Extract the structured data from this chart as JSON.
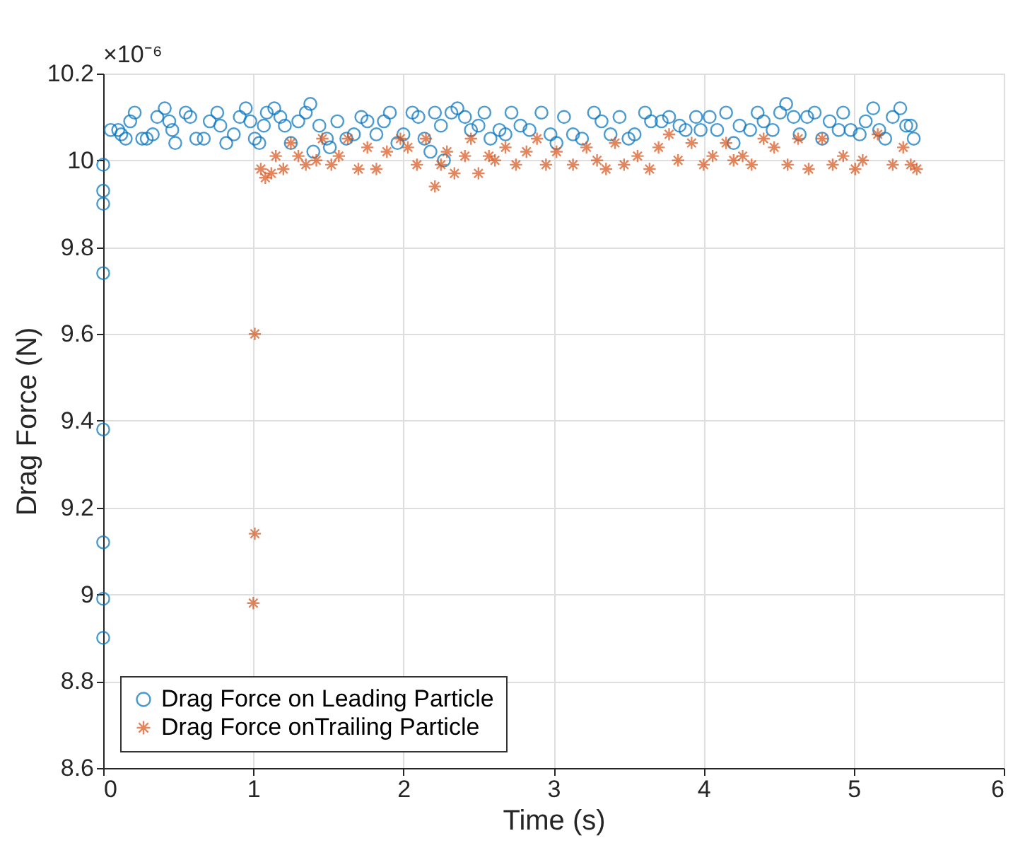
{
  "chart_data": {
    "type": "scatter",
    "xlabel": "Time (s)",
    "ylabel": "Drag Force (N)",
    "annotations": [
      "×10⁻⁶"
    ],
    "xlim": [
      0,
      6
    ],
    "xticks": [
      0,
      1,
      2,
      3,
      4,
      5,
      6
    ],
    "ylim": [
      8.6,
      10.2
    ],
    "yticks": [
      8.6,
      8.8,
      9,
      9.2,
      9.4,
      9.6,
      9.8,
      10,
      10.2
    ],
    "grid": true,
    "legend": "bottom left",
    "series": [
      {
        "name": "Drag Force on Leading Particle",
        "color": "#0072bd",
        "marker": "circle",
        "x": [
          0,
          0,
          0,
          0,
          0,
          0,
          0,
          0,
          0.05,
          0.1,
          0.12,
          0.15,
          0.18,
          0.21,
          0.26,
          0.29,
          0.33,
          0.36,
          0.41,
          0.44,
          0.46,
          0.48,
          0.55,
          0.58,
          0.62,
          0.67,
          0.71,
          0.76,
          0.78,
          0.82,
          0.87,
          0.91,
          0.95,
          0.98,
          1.01,
          1.04,
          1.07,
          1.09,
          1.14,
          1.18,
          1.21,
          1.25,
          1.3,
          1.35,
          1.38,
          1.4,
          1.44,
          1.49,
          1.51,
          1.56,
          1.62,
          1.67,
          1.72,
          1.76,
          1.82,
          1.87,
          1.91,
          1.96,
          2.0,
          2.06,
          2.1,
          2.14,
          2.18,
          2.21,
          2.25,
          2.27,
          2.32,
          2.36,
          2.41,
          2.45,
          2.5,
          2.54,
          2.58,
          2.64,
          2.68,
          2.72,
          2.78,
          2.84,
          2.92,
          2.98,
          3.02,
          3.07,
          3.13,
          3.19,
          3.27,
          3.32,
          3.38,
          3.44,
          3.5,
          3.54,
          3.61,
          3.65,
          3.72,
          3.77,
          3.84,
          3.88,
          3.95,
          3.98,
          4.04,
          4.09,
          4.15,
          4.2,
          4.24,
          4.31,
          4.36,
          4.4,
          4.46,
          4.51,
          4.55,
          4.6,
          4.64,
          4.69,
          4.74,
          4.79,
          4.84,
          4.9,
          4.93,
          4.98,
          5.04,
          5.08,
          5.13,
          5.17,
          5.21,
          5.26,
          5.31,
          5.35,
          5.38,
          5.4
        ],
        "values": [
          9.99,
          9.93,
          9.9,
          9.74,
          9.38,
          9.12,
          8.99,
          8.9,
          10.07,
          10.07,
          10.06,
          10.05,
          10.09,
          10.11,
          10.05,
          10.05,
          10.06,
          10.1,
          10.12,
          10.09,
          10.07,
          10.04,
          10.11,
          10.1,
          10.05,
          10.05,
          10.09,
          10.11,
          10.08,
          10.04,
          10.06,
          10.1,
          10.12,
          10.09,
          10.05,
          10.04,
          10.08,
          10.11,
          10.12,
          10.1,
          10.08,
          10.04,
          10.09,
          10.11,
          10.13,
          10.02,
          10.08,
          10.05,
          10.03,
          10.09,
          10.05,
          10.06,
          10.1,
          10.09,
          10.06,
          10.09,
          10.11,
          10.04,
          10.06,
          10.11,
          10.1,
          10.05,
          10.02,
          10.11,
          10.08,
          10.0,
          10.11,
          10.12,
          10.1,
          10.07,
          10.08,
          10.11,
          10.05,
          10.07,
          10.06,
          10.11,
          10.08,
          10.07,
          10.11,
          10.06,
          10.04,
          10.1,
          10.06,
          10.05,
          10.11,
          10.09,
          10.06,
          10.1,
          10.05,
          10.06,
          10.11,
          10.09,
          10.09,
          10.1,
          10.08,
          10.07,
          10.1,
          10.07,
          10.1,
          10.07,
          10.11,
          10.04,
          10.08,
          10.07,
          10.11,
          10.09,
          10.07,
          10.11,
          10.13,
          10.1,
          10.06,
          10.1,
          10.11,
          10.05,
          10.09,
          10.07,
          10.11,
          10.07,
          10.06,
          10.09,
          10.12,
          10.07,
          10.05,
          10.1,
          10.12,
          10.08,
          10.08,
          10.05
        ]
      },
      {
        "name": "Drag Force onTrailing Particle",
        "color": "#d95319",
        "marker": "cross",
        "x": [
          1.01,
          1.01,
          1.0,
          1.05,
          1.08,
          1.12,
          1.15,
          1.2,
          1.25,
          1.3,
          1.35,
          1.42,
          1.46,
          1.52,
          1.57,
          1.63,
          1.7,
          1.76,
          1.82,
          1.89,
          1.98,
          2.03,
          2.09,
          2.15,
          2.21,
          2.25,
          2.29,
          2.34,
          2.41,
          2.45,
          2.5,
          2.57,
          2.61,
          2.68,
          2.75,
          2.82,
          2.89,
          2.95,
          3.02,
          3.13,
          3.22,
          3.29,
          3.35,
          3.41,
          3.47,
          3.56,
          3.64,
          3.7,
          3.77,
          3.83,
          3.92,
          4.0,
          4.06,
          4.15,
          4.2,
          4.26,
          4.32,
          4.4,
          4.47,
          4.56,
          4.63,
          4.7,
          4.79,
          4.86,
          4.93,
          5.01,
          5.06,
          5.16,
          5.26,
          5.33,
          5.38,
          5.42
        ],
        "values": [
          9.6,
          9.14,
          8.98,
          9.98,
          9.96,
          9.97,
          10.01,
          9.98,
          10.04,
          10.01,
          9.99,
          10.0,
          10.05,
          9.99,
          10.01,
          10.05,
          9.98,
          10.03,
          9.98,
          10.02,
          10.05,
          10.03,
          9.99,
          10.05,
          9.94,
          9.99,
          10.02,
          9.97,
          10.01,
          10.05,
          9.97,
          10.01,
          10.0,
          10.03,
          9.99,
          10.02,
          10.05,
          9.99,
          10.02,
          9.99,
          10.03,
          10.0,
          9.98,
          10.04,
          9.99,
          10.01,
          9.98,
          10.03,
          10.06,
          10.0,
          10.04,
          9.99,
          10.01,
          10.04,
          10.0,
          10.01,
          9.99,
          10.05,
          10.03,
          9.99,
          10.05,
          9.98,
          10.05,
          9.99,
          10.01,
          9.98,
          10.0,
          10.06,
          9.99,
          10.03,
          9.99,
          9.98
        ]
      }
    ]
  }
}
